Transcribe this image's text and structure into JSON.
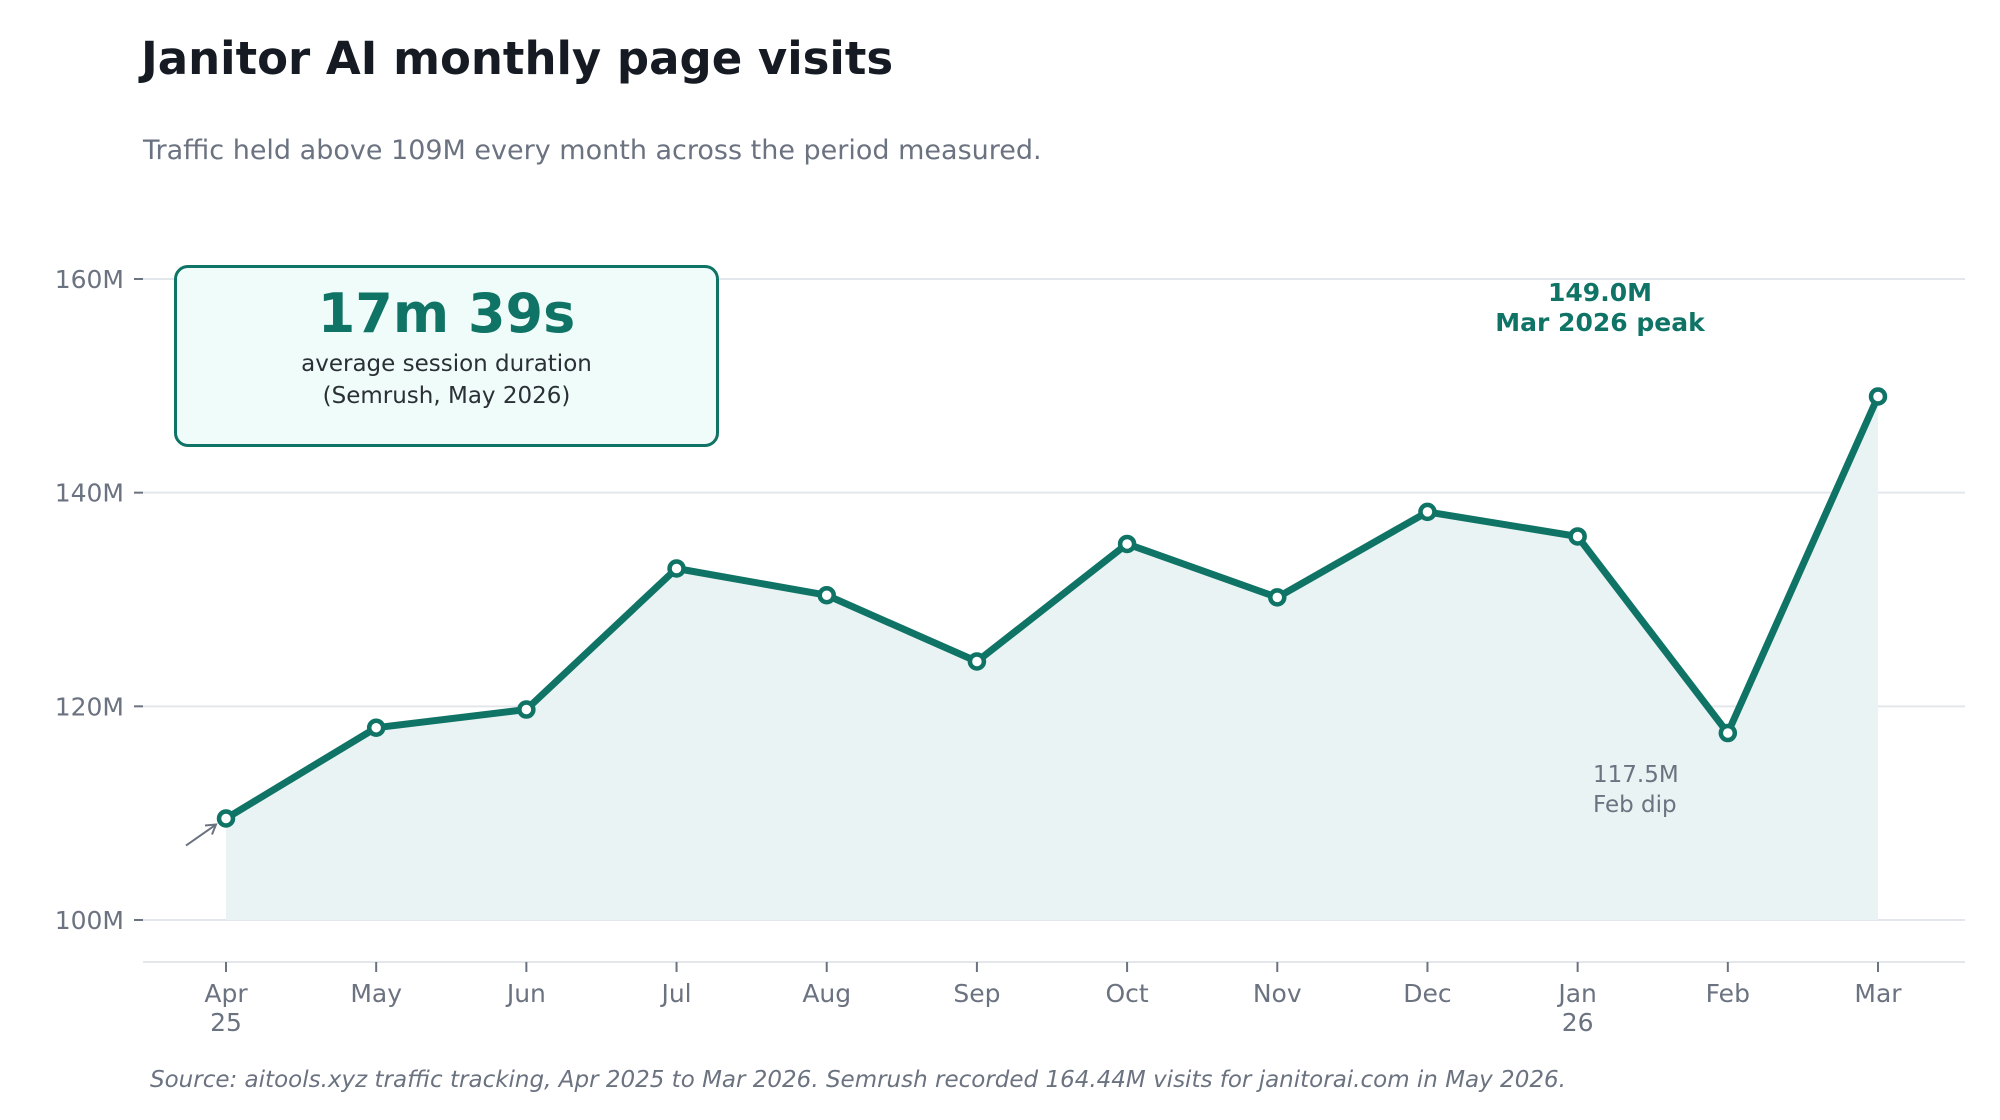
{
  "header": {
    "title": "Janitor AI monthly page visits",
    "subtitle": "Traffic held above 109M every month across the period measured."
  },
  "callout": {
    "value": "17m 39s",
    "line1": "average session duration",
    "line2": "(Semrush, May 2026)"
  },
  "annotations": {
    "peak_value": "149.0M",
    "peak_label": "Mar 2026 peak",
    "dip_value": "117.5M",
    "dip_label": "Feb dip"
  },
  "footer": {
    "source": "Source: aitools.xyz traffic tracking, Apr 2025 to Mar 2026. Semrush recorded 164.44M visits for janitorai.com in May 2026."
  },
  "colors": {
    "line": "#0f7466",
    "area": "#e9f3f3",
    "grid": "#e3e6ea",
    "axis_text": "#6b7280"
  },
  "chart_data": {
    "type": "line",
    "title": "Janitor AI monthly page visits",
    "subtitle": "Traffic held above 109M every month across the period measured.",
    "xlabel": "",
    "ylabel": "",
    "categories": [
      [
        "Apr",
        "25"
      ],
      [
        "May"
      ],
      [
        "Jun"
      ],
      [
        "Jul"
      ],
      [
        "Aug"
      ],
      [
        "Sep"
      ],
      [
        "Oct"
      ],
      [
        "Nov"
      ],
      [
        "Dec"
      ],
      [
        "Jan",
        "26"
      ],
      [
        "Feb"
      ],
      [
        "Mar"
      ]
    ],
    "series": [
      {
        "values": [
          109.5,
          118.0,
          119.7,
          132.9,
          130.4,
          124.2,
          135.2,
          130.2,
          138.2,
          135.9,
          117.5,
          149.0
        ]
      }
    ],
    "ylim": [
      100,
      160
    ],
    "yticks": [
      100,
      120,
      140,
      160
    ],
    "ytick_labels": [
      "100M",
      "120M",
      "140M",
      "160M"
    ],
    "grid": true,
    "area_fill": true
  }
}
